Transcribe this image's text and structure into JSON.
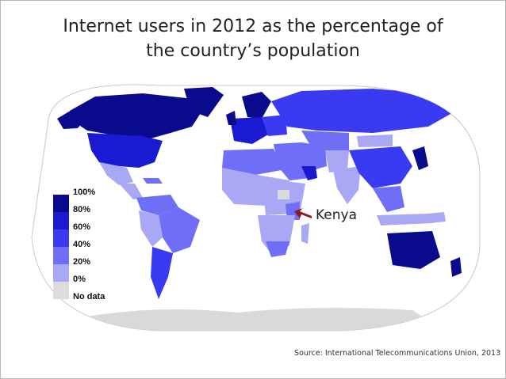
{
  "title_lines": [
    "Internet users in 2012 as the percentage of",
    "the country’s population"
  ],
  "legend": {
    "items": [
      {
        "label": "100%",
        "color": "#0a0a8c"
      },
      {
        "label": "80%",
        "color": "#1a1ad2"
      },
      {
        "label": "60%",
        "color": "#3a3af2"
      },
      {
        "label": "40%",
        "color": "#6e6ef6"
      },
      {
        "label": "20%",
        "color": "#a8a8f4"
      },
      {
        "label": "0%",
        "color": "#dcdcdc"
      },
      {
        "label": "No data",
        "color": null
      }
    ]
  },
  "callout": {
    "label": "Kenya",
    "arrow_color": "#8b1a1a"
  },
  "source": "Source: International Telecommunications Union, 2013",
  "colors": {
    "ocean": "#ffffff",
    "antarctica": "#d9d9d9",
    "border": "#ffffff"
  }
}
